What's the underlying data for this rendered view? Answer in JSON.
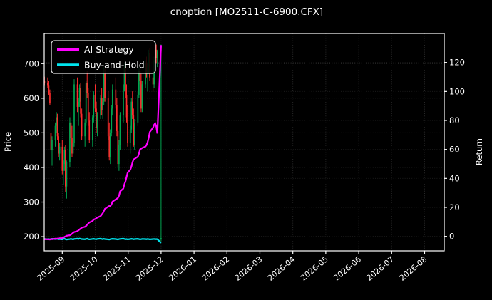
{
  "title": "cnoption [MO2511-C-6900.CFX]",
  "legend": {
    "items": [
      {
        "label": "AI Strategy",
        "color": "#ff00ff"
      },
      {
        "label": "Buy-and-Hold",
        "color": "#00e5ee"
      }
    ]
  },
  "colors": {
    "background": "#000000",
    "text": "#ffffff",
    "spine": "#ffffff",
    "grid_major": "#2d2d2d",
    "grid_secondary": "#1f1f1f",
    "candle_up": "#00a650",
    "candle_down": "#ff2d2d",
    "strategy_line": "#ff00ff",
    "buyhold_line": "#00e5ee"
  },
  "chart_data": {
    "type": "candlestick",
    "title": "cnoption [MO2511-C-6900.CFX]",
    "grid": "dotted",
    "legend_position": "upper-left",
    "x_axis": {
      "tick_labels": [
        "2025-09",
        "2025-10",
        "2025-11",
        "2025-12",
        "2026-01",
        "2026-02",
        "2026-03",
        "2026-04",
        "2026-05",
        "2026-06",
        "2026-07",
        "2026-08"
      ],
      "tick_rotation_deg": 40,
      "range_months_rel_2025_09": [
        -0.548,
        11.596
      ]
    },
    "price_axis": {
      "label": "Price",
      "ticks": [
        200,
        300,
        400,
        500,
        600,
        700
      ],
      "range": [
        159,
        787
      ]
    },
    "return_axis": {
      "label": "Return",
      "ticks": [
        0,
        20,
        40,
        60,
        80,
        100,
        120
      ],
      "range": [
        -10,
        140
      ]
    },
    "candles": {
      "dates": [
        "2025-08-15",
        "2025-08-18",
        "2025-08-19",
        "2025-08-20",
        "2025-08-21",
        "2025-08-22",
        "2025-08-25",
        "2025-08-26",
        "2025-08-27",
        "2025-08-28",
        "2025-08-29",
        "2025-09-01",
        "2025-09-02",
        "2025-09-03",
        "2025-09-04",
        "2025-09-05",
        "2025-09-08",
        "2025-09-09",
        "2025-09-10",
        "2025-09-11",
        "2025-09-12",
        "2025-09-15",
        "2025-09-16",
        "2025-09-17",
        "2025-09-18",
        "2025-09-19",
        "2025-09-22",
        "2025-09-23",
        "2025-09-24",
        "2025-09-25",
        "2025-09-26",
        "2025-09-29",
        "2025-09-30",
        "2025-10-01",
        "2025-10-02",
        "2025-10-03",
        "2025-10-06",
        "2025-10-07",
        "2025-10-08",
        "2025-10-09",
        "2025-10-10",
        "2025-10-13",
        "2025-10-14",
        "2025-10-15",
        "2025-10-16",
        "2025-10-17",
        "2025-10-20",
        "2025-10-21",
        "2025-10-22",
        "2025-10-23",
        "2025-10-24",
        "2025-10-27",
        "2025-10-28",
        "2025-10-29",
        "2025-10-30",
        "2025-10-31",
        "2025-11-03",
        "2025-11-04",
        "2025-11-05",
        "2025-11-06",
        "2025-11-07",
        "2025-11-10",
        "2025-11-11",
        "2025-11-12",
        "2025-11-13",
        "2025-11-14",
        "2025-11-17",
        "2025-11-18",
        "2025-11-19",
        "2025-11-20",
        "2025-11-21",
        "2025-11-24",
        "2025-11-25",
        "2025-11-26",
        "2025-11-27",
        "2025-11-28",
        "2025-12-01"
      ],
      "ohlc": [
        [
          650,
          662,
          638,
          645
        ],
        [
          645,
          660,
          630,
          638
        ],
        [
          638,
          650,
          610,
          615
        ],
        [
          615,
          625,
          580,
          585
        ],
        [
          500,
          510,
          440,
          450
        ],
        [
          450,
          490,
          405,
          480
        ],
        [
          480,
          530,
          460,
          520
        ],
        [
          520,
          560,
          500,
          545
        ],
        [
          545,
          555,
          480,
          490
        ],
        [
          490,
          500,
          430,
          440
        ],
        [
          440,
          470,
          420,
          460
        ],
        [
          460,
          480,
          380,
          390
        ],
        [
          390,
          420,
          350,
          410
        ],
        [
          410,
          460,
          390,
          450
        ],
        [
          450,
          465,
          330,
          345
        ],
        [
          345,
          420,
          310,
          415
        ],
        [
          415,
          545,
          400,
          530
        ],
        [
          530,
          560,
          470,
          485
        ],
        [
          485,
          520,
          430,
          440
        ],
        [
          440,
          480,
          400,
          470
        ],
        [
          470,
          655,
          460,
          640
        ],
        [
          640,
          660,
          560,
          575
        ],
        [
          575,
          600,
          520,
          590
        ],
        [
          590,
          640,
          575,
          630
        ],
        [
          630,
          645,
          545,
          555
        ],
        [
          555,
          570,
          480,
          490
        ],
        [
          490,
          540,
          460,
          530
        ],
        [
          530,
          650,
          520,
          645
        ],
        [
          645,
          680,
          600,
          615
        ],
        [
          615,
          630,
          520,
          535
        ],
        [
          535,
          560,
          470,
          480
        ],
        [
          480,
          550,
          460,
          545
        ],
        [
          545,
          620,
          530,
          610
        ],
        [
          610,
          640,
          560,
          570
        ],
        [
          570,
          590,
          500,
          515
        ],
        [
          515,
          560,
          490,
          550
        ],
        [
          550,
          610,
          540,
          600
        ],
        [
          600,
          630,
          550,
          565
        ],
        [
          565,
          600,
          540,
          590
        ],
        [
          590,
          690,
          580,
          670
        ],
        [
          670,
          685,
          590,
          600
        ],
        [
          600,
          620,
          480,
          490
        ],
        [
          490,
          530,
          420,
          430
        ],
        [
          430,
          510,
          410,
          500
        ],
        [
          500,
          580,
          490,
          570
        ],
        [
          570,
          640,
          550,
          625
        ],
        [
          625,
          660,
          570,
          580
        ],
        [
          580,
          600,
          490,
          505
        ],
        [
          505,
          520,
          400,
          410
        ],
        [
          410,
          480,
          390,
          465
        ],
        [
          465,
          560,
          450,
          550
        ],
        [
          550,
          640,
          530,
          630
        ],
        [
          630,
          700,
          620,
          690
        ],
        [
          690,
          700,
          600,
          610
        ],
        [
          610,
          640,
          530,
          545
        ],
        [
          545,
          580,
          460,
          470
        ],
        [
          470,
          520,
          440,
          510
        ],
        [
          510,
          600,
          500,
          590
        ],
        [
          590,
          620,
          540,
          550
        ],
        [
          550,
          570,
          460,
          465
        ],
        [
          465,
          540,
          450,
          530
        ],
        [
          530,
          620,
          520,
          610
        ],
        [
          610,
          690,
          600,
          680
        ],
        [
          680,
          705,
          640,
          650
        ],
        [
          650,
          670,
          560,
          570
        ],
        [
          570,
          650,
          560,
          640
        ],
        [
          640,
          710,
          630,
          700
        ],
        [
          700,
          720,
          660,
          670
        ],
        [
          670,
          700,
          620,
          690
        ],
        [
          690,
          740,
          670,
          730
        ],
        [
          730,
          745,
          650,
          660
        ],
        [
          660,
          700,
          620,
          640
        ],
        [
          640,
          720,
          630,
          710
        ],
        [
          710,
          750,
          690,
          740
        ],
        [
          740,
          755,
          700,
          715
        ],
        [
          715,
          740,
          690,
          735
        ],
        [
          192,
          755,
          187,
          196
        ]
      ]
    },
    "series": [
      {
        "name": "AI Strategy",
        "axis": "return",
        "color": "#ff00ff",
        "values": [
          -2.0,
          -2.0,
          -2.1,
          -2.2,
          -1.8,
          -2.0,
          -1.6,
          -1.8,
          -1.5,
          -1.6,
          -1.3,
          -1.2,
          -0.8,
          -0.4,
          0,
          0.4,
          0.8,
          1.2,
          1.8,
          2.4,
          3.0,
          3.6,
          4.2,
          4.8,
          5.4,
          6.0,
          6.6,
          7.2,
          8.0,
          8.8,
          9.6,
          10.6,
          11.6,
          12.0,
          12.5,
          13.0,
          14.0,
          15.0,
          16.0,
          17.5,
          19.0,
          20.5,
          21.0,
          21.0,
          22.0,
          24.0,
          25.5,
          26.0,
          26.5,
          28.0,
          31.0,
          33.0,
          36.0,
          38.0,
          41.0,
          44.0,
          46,
          48,
          51,
          53,
          53.5,
          55,
          57,
          60,
          60.5,
          61,
          62,
          63,
          65,
          68,
          72,
          75,
          77,
          78,
          76,
          71,
          132
        ]
      },
      {
        "name": "Buy-and-Hold",
        "axis": "return",
        "color": "#00e5ee",
        "values": [
          -1.8,
          -2.0,
          -1.9,
          -2.1,
          -2.0,
          -1.7,
          -1.9,
          -1.6,
          -1.8,
          -2.0,
          -1.9,
          -2.1,
          -1.8,
          -1.6,
          -2.0,
          -2.2,
          -1.9,
          -1.7,
          -1.9,
          -2.1,
          -1.8,
          -1.6,
          -1.8,
          -1.5,
          -1.7,
          -1.9,
          -2.0,
          -1.8,
          -1.6,
          -1.9,
          -2.1,
          -1.8,
          -1.7,
          -1.9,
          -2.0,
          -1.8,
          -1.6,
          -1.8,
          -2.0,
          -1.7,
          -1.9,
          -2.1,
          -2.2,
          -2.0,
          -1.8,
          -1.7,
          -1.9,
          -2.0,
          -2.2,
          -1.9,
          -1.8,
          -1.6,
          -1.8,
          -2.0,
          -1.9,
          -2.1,
          -1.9,
          -1.7,
          -1.8,
          -2.0,
          -1.9,
          -1.7,
          -1.9,
          -2.1,
          -2.0,
          -1.8,
          -1.9,
          -2.0,
          -1.8,
          -1.9,
          -2.1,
          -1.9,
          -1.8,
          -2.0,
          -1.9,
          -2.0,
          -4.5
        ]
      }
    ]
  }
}
